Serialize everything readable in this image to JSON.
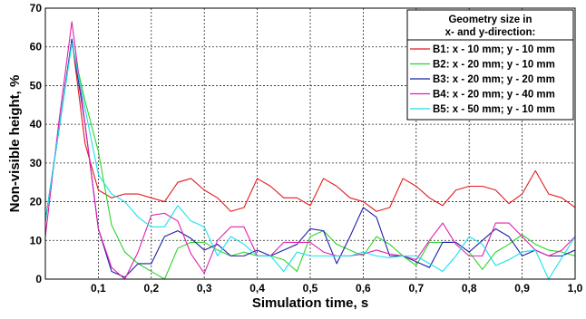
{
  "chart_data": {
    "type": "line",
    "xlabel": "Simulation time, s",
    "ylabel": "Non-visible height, %",
    "xlim": [
      0,
      1.0
    ],
    "ylim": [
      0,
      70
    ],
    "x_ticks": [
      0.1,
      0.2,
      0.3,
      0.4,
      0.5,
      0.6,
      0.7,
      0.8,
      0.9,
      1.0
    ],
    "x_tick_labels": [
      "0,1",
      "0,2",
      "0,3",
      "0,4",
      "0,5",
      "0,6",
      "0,7",
      "0,8",
      "0,9",
      "1,0"
    ],
    "y_ticks": [
      0,
      10,
      20,
      30,
      40,
      50,
      60,
      70
    ],
    "y_tick_labels": [
      "0",
      "10",
      "20",
      "30",
      "40",
      "50",
      "60",
      "70"
    ],
    "grid": true,
    "legend": {
      "position": "top-right",
      "title_lines": [
        "Geometry size in",
        "x- and y-direction:"
      ]
    },
    "x": [
      0.0,
      0.025,
      0.05,
      0.075,
      0.1,
      0.125,
      0.15,
      0.175,
      0.2,
      0.225,
      0.25,
      0.275,
      0.3,
      0.325,
      0.35,
      0.375,
      0.4,
      0.425,
      0.45,
      0.475,
      0.5,
      0.525,
      0.55,
      0.575,
      0.6,
      0.625,
      0.65,
      0.675,
      0.7,
      0.725,
      0.75,
      0.775,
      0.8,
      0.825,
      0.85,
      0.875,
      0.9,
      0.925,
      0.95,
      0.975,
      1.0
    ],
    "series": [
      {
        "name": "B1: x - 10 mm; y - 10 mm",
        "color": "#e31a1c",
        "values": [
          15,
          38,
          62,
          35,
          23,
          21,
          22,
          22,
          21,
          20,
          25,
          26,
          23,
          21,
          17.5,
          18.5,
          26,
          24,
          21,
          21,
          19,
          26,
          24,
          21,
          20,
          17.5,
          18.5,
          26,
          24,
          21,
          19,
          23,
          24,
          24,
          23,
          19.5,
          22,
          28,
          22,
          21,
          18.5
        ]
      },
      {
        "name": "B2: x - 20 mm; y - 10 mm",
        "color": "#2bd42b",
        "values": [
          15,
          38,
          61,
          46,
          33,
          14,
          7,
          4,
          2,
          0,
          8,
          9.5,
          9.5,
          7.5,
          6,
          7,
          6,
          6,
          5,
          2,
          11,
          12.5,
          9,
          7.5,
          6,
          11,
          9,
          6,
          3.5,
          9.5,
          9.5,
          9.5,
          7,
          2.5,
          7,
          9,
          11.5,
          9,
          7.5,
          7,
          6
        ]
      },
      {
        "name": "B3: x - 20 mm; y - 20 mm",
        "color": "#1f1fa8",
        "values": [
          15,
          38,
          62,
          40,
          13,
          2,
          0.5,
          4,
          4,
          11,
          12.5,
          10.5,
          7.5,
          9,
          6,
          6,
          7.5,
          6,
          7.5,
          9,
          13,
          12.5,
          4,
          11,
          18.5,
          16,
          6,
          6,
          4.5,
          3,
          9.5,
          9.5,
          7,
          10,
          13,
          11,
          6,
          7.5,
          6,
          6,
          7.5
        ]
      },
      {
        "name": "B4: x - 20 mm; y - 40 mm",
        "color": "#e020b0",
        "values": [
          11,
          40,
          66.5,
          40,
          13,
          3,
          0,
          7,
          16.5,
          17,
          15,
          6.5,
          1.5,
          10,
          13.5,
          13.5,
          6,
          6,
          9.5,
          9.5,
          9.5,
          7,
          6,
          6,
          6.5,
          7.5,
          6.5,
          6,
          5,
          10,
          14.5,
          9,
          6,
          6,
          14.5,
          14.5,
          11,
          7.5,
          6,
          7.5,
          11
        ]
      },
      {
        "name": "B5: x - 50 mm; y - 10 mm",
        "color": "#16e2ec",
        "values": [
          15,
          38,
          61,
          44,
          27,
          22,
          20,
          16,
          13.5,
          13.5,
          19,
          15,
          13.5,
          6,
          11,
          9,
          6,
          6,
          2,
          7,
          6,
          6,
          6,
          6,
          7,
          6,
          5.5,
          6,
          6,
          4,
          2,
          6,
          11,
          9,
          3.5,
          5,
          7,
          7.5,
          0,
          5.5,
          11
        ]
      }
    ]
  }
}
